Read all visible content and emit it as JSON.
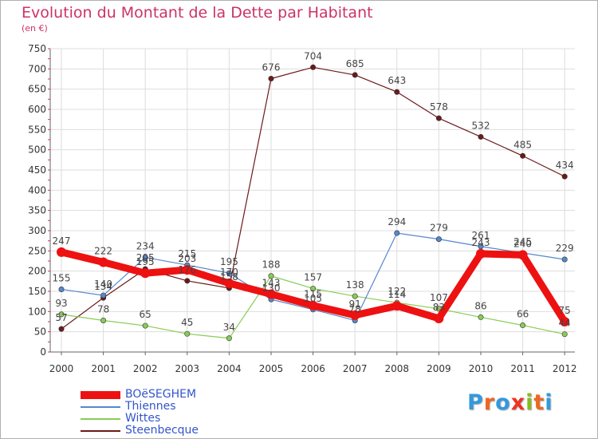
{
  "title": "Evolution du Montant de la Dette par Habitant",
  "unit_label": "(en €)",
  "logo_text": "Proxiti",
  "colors": {
    "title": "#cc3366",
    "axis": "#666666",
    "grid": "#dddddd",
    "legend_text": "#3355cc"
  },
  "chart_data": {
    "type": "line",
    "x": [
      "2000",
      "2001",
      "2002",
      "2003",
      "2004",
      "2005",
      "2006",
      "2007",
      "2008",
      "2009",
      "2010",
      "2011",
      "2012"
    ],
    "ylim": [
      0,
      750
    ],
    "yticks": [
      0,
      50,
      100,
      150,
      200,
      250,
      300,
      350,
      400,
      450,
      500,
      550,
      600,
      650,
      700,
      750
    ],
    "grid": true,
    "legend_position": "bottom-left",
    "series": [
      {
        "name": "Steenbecque",
        "color": "#6b1a1a",
        "values": [
          57,
          134,
          205,
          176,
          158,
          676,
          704,
          685,
          643,
          578,
          532,
          485,
          434
        ]
      },
      {
        "name": "Wittes",
        "color": "#88cc55",
        "values": [
          93,
          78,
          65,
          45,
          34,
          188,
          157,
          138,
          122,
          107,
          86,
          66,
          44
        ]
      },
      {
        "name": "Thiennes",
        "color": "#5588cc",
        "values": [
          155,
          140,
          234,
          215,
          195,
          130,
          105,
          78,
          294,
          279,
          261,
          245,
          229
        ]
      },
      {
        "name": "BOëSEGHEM",
        "color": "#ee1111",
        "values": [
          247,
          222,
          195,
          203,
          170,
          143,
          115,
          91,
          114,
          83,
          243,
          240,
          75
        ]
      }
    ]
  }
}
